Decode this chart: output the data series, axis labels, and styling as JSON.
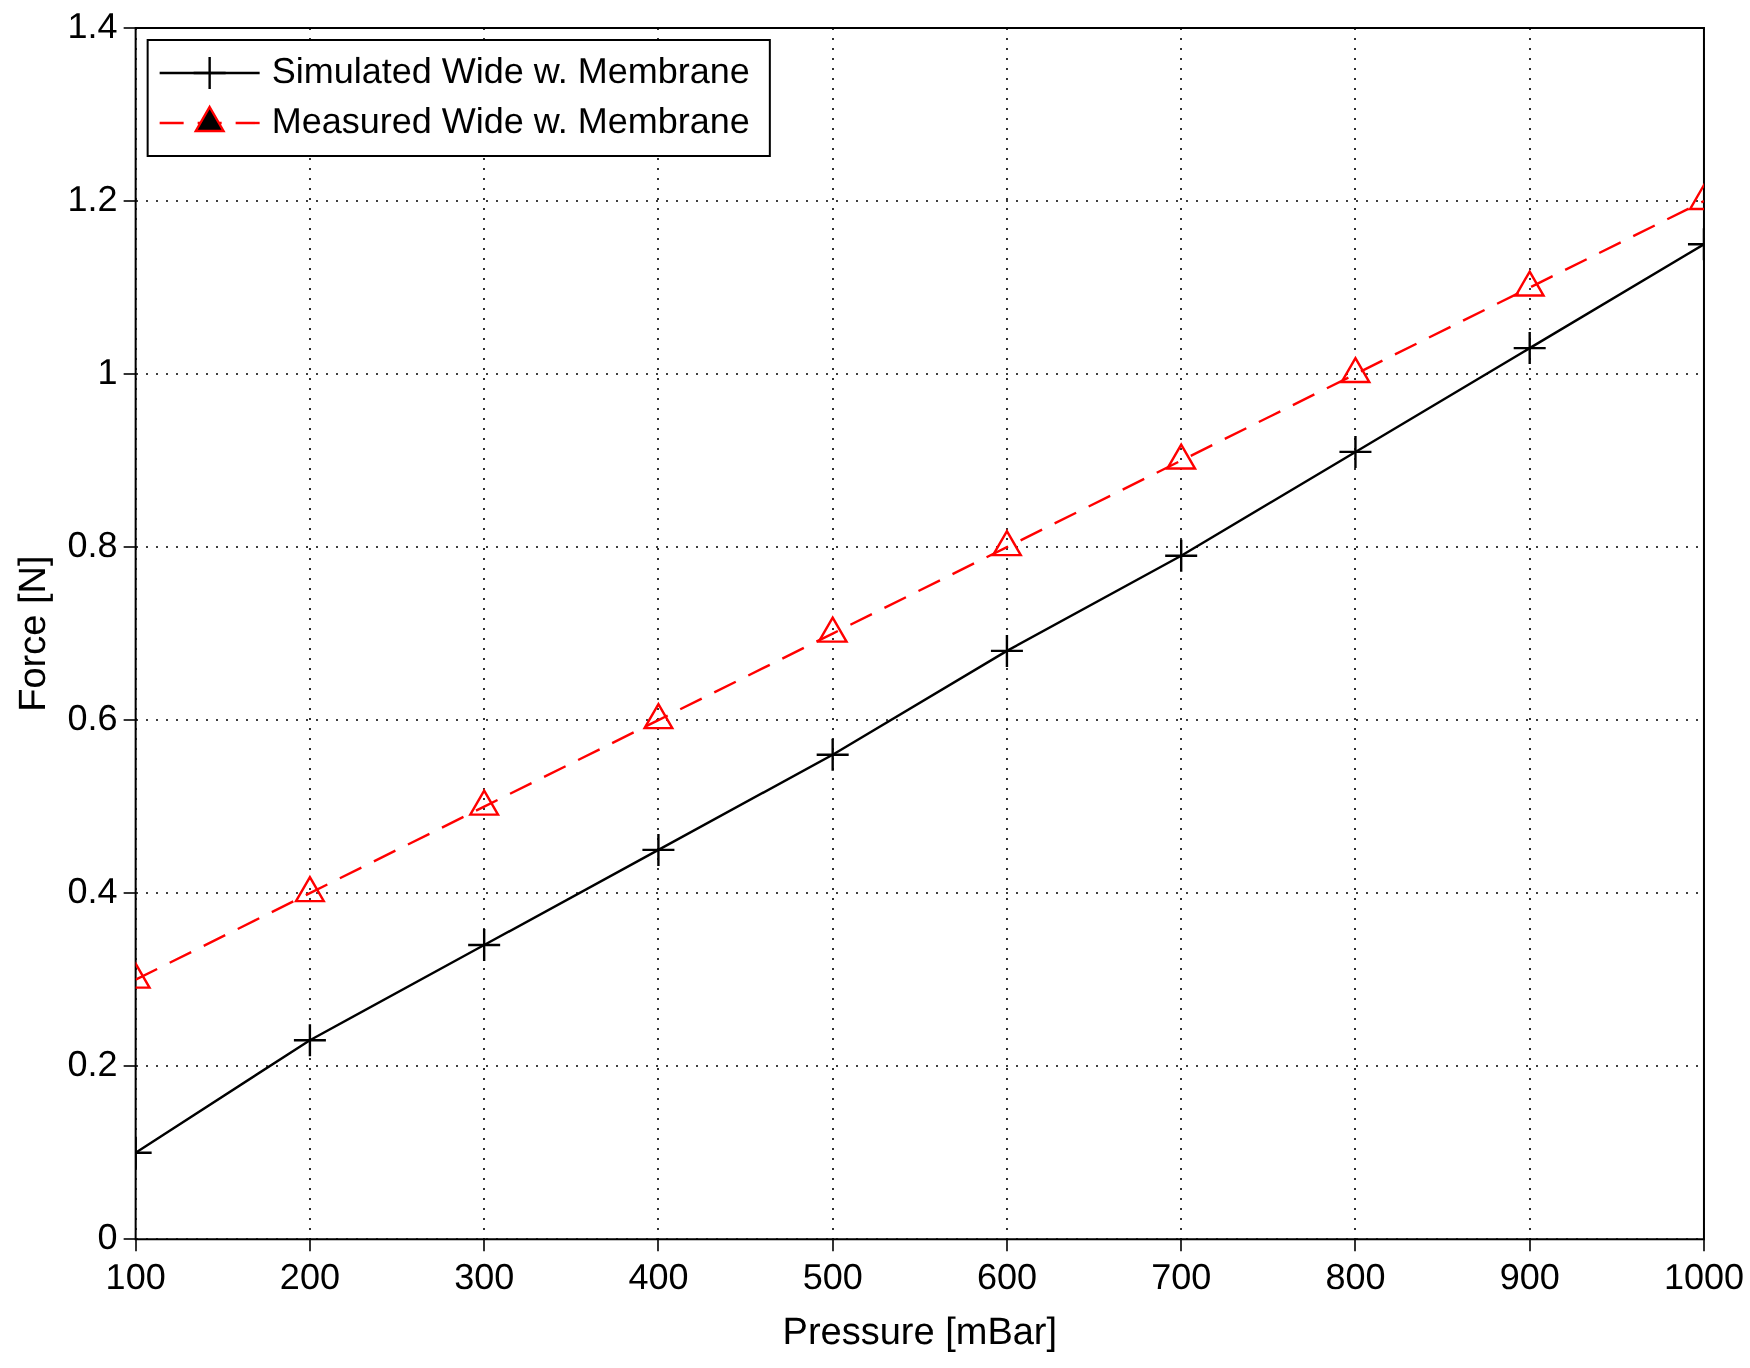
{
  "chart_data": {
    "type": "line",
    "xlabel": "Pressure [mBar]",
    "ylabel": "Force [N]",
    "x": [
      100,
      200,
      300,
      400,
      500,
      600,
      700,
      800,
      900,
      1000
    ],
    "series": [
      {
        "name": "Simulated Wide w. Membrane",
        "color": "#000000",
        "marker": "cross",
        "line_style": "solid",
        "values": [
          0.1,
          0.23,
          0.34,
          0.45,
          0.56,
          0.68,
          0.79,
          0.91,
          1.03,
          1.15
        ]
      },
      {
        "name": "Measured Wide w. Membrane",
        "color": "#ff0000",
        "marker": "triangle",
        "line_style": "dashed",
        "values": [
          0.3,
          0.4,
          0.5,
          0.6,
          0.7,
          0.8,
          0.9,
          1.0,
          1.1,
          1.2
        ]
      }
    ],
    "xlim": [
      100,
      1000
    ],
    "xticks": [
      100,
      200,
      300,
      400,
      500,
      600,
      700,
      800,
      900,
      1000
    ],
    "ylim": [
      0,
      1.4
    ],
    "yticks": [
      0,
      0.2,
      0.4,
      0.6,
      0.8,
      1,
      1.2,
      1.4
    ],
    "grid": true,
    "legend": "top left"
  }
}
